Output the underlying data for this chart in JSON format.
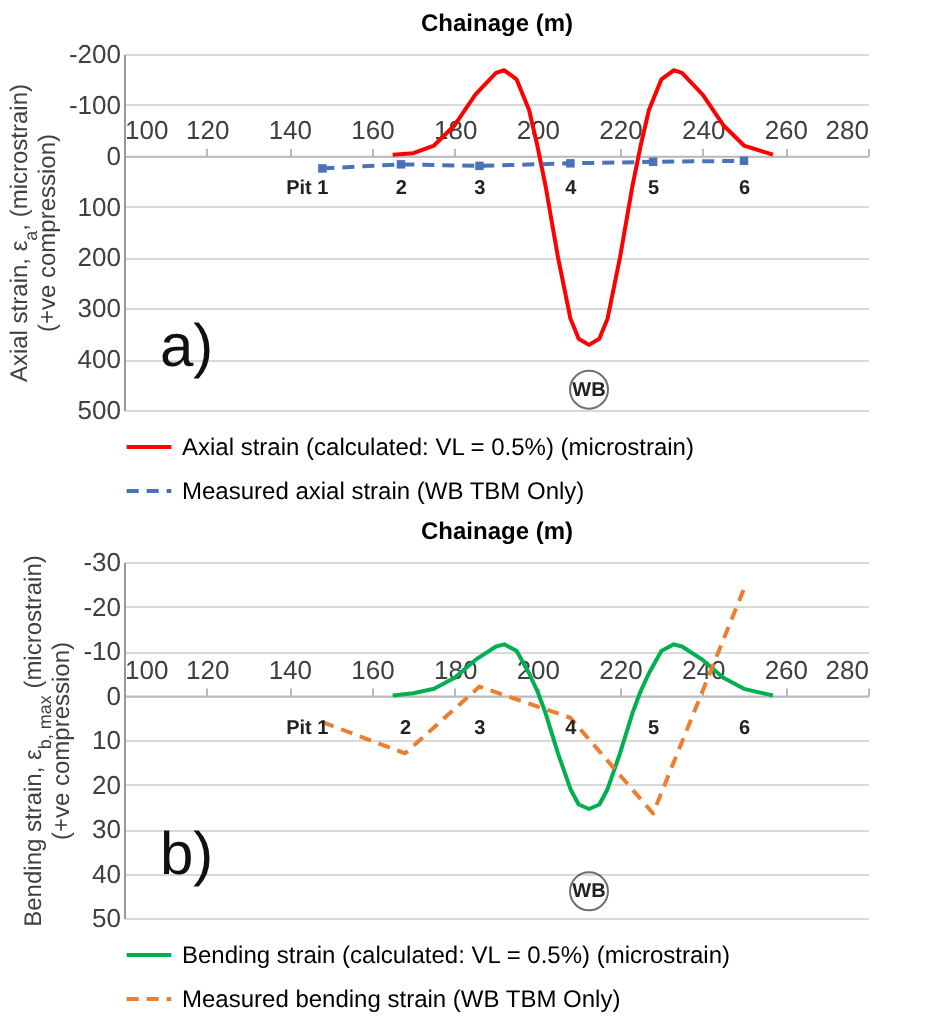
{
  "chart_data": [
    {
      "type": "line",
      "xlabel": "Chainage (m)",
      "ylabel": "Axial strain, ε$_{a}$, (microstrain)\n(+ve compression)",
      "xlim": [
        100,
        280
      ],
      "xticks": [
        100,
        120,
        140,
        160,
        180,
        200,
        220,
        240,
        260,
        280
      ],
      "ylim": [
        500,
        -200
      ],
      "yticks": [
        -200,
        -100,
        0,
        100,
        200,
        300,
        400,
        500
      ],
      "grid": "y",
      "legend": "bottom",
      "series": [
        {
          "name": "Axial strain (calculated: VL = 0.5%) (microstrain)",
          "color": "#ff0000",
          "line_style": "solid",
          "x": [
            165,
            170,
            175,
            180,
            185,
            190,
            192,
            195,
            198,
            200,
            202,
            205,
            208,
            210,
            212.5,
            215,
            217,
            220,
            223,
            225,
            227,
            230,
            233,
            235,
            240,
            245,
            250,
            257
          ],
          "values": [
            -2,
            -5,
            -20,
            -60,
            -120,
            -163,
            -168,
            -150,
            -90,
            -20,
            60,
            200,
            320,
            360,
            372,
            360,
            320,
            200,
            60,
            -20,
            -90,
            -150,
            -168,
            -163,
            -120,
            -60,
            -20,
            -2
          ]
        },
        {
          "name": "Measured axial strain (WB TBM Only)",
          "color": "#4a72b8",
          "line_style": "dashed",
          "marker": "square",
          "x": [
            148,
            167,
            186,
            208,
            228,
            250
          ],
          "values": [
            25,
            17,
            20,
            15,
            12,
            10
          ]
        }
      ],
      "annotations": [
        "a)",
        "Pit  1",
        "2",
        "3",
        "4",
        "5",
        "6",
        {
          "text": "WB",
          "x": 212.5,
          "y": 460
        }
      ]
    },
    {
      "type": "line",
      "xlabel": "Chainage (m)",
      "ylabel": "Bending strain, ε$_{b, max}$ (microstrain)\n(+ve compression)",
      "xlim": [
        100,
        280
      ],
      "xticks": [
        100,
        120,
        140,
        160,
        180,
        200,
        220,
        240,
        260,
        280
      ],
      "ylim": [
        50,
        -30
      ],
      "yticks": [
        -30,
        -20,
        -10,
        0,
        10,
        20,
        30,
        40,
        50
      ],
      "grid": "y",
      "legend": "bottom",
      "series": [
        {
          "name": "Bending strain (calculated: VL = 0.5%) (microstrain)",
          "color": "#00b050",
          "line_style": "solid",
          "x": [
            165,
            170,
            175,
            180,
            185,
            190,
            192,
            195,
            198,
            200,
            202,
            205,
            208,
            210,
            212.5,
            215,
            217,
            220,
            223,
            225,
            227,
            230,
            233,
            235,
            240,
            245,
            250,
            257
          ],
          "values": [
            0,
            -0.5,
            -1.5,
            -4,
            -8,
            -11,
            -11.5,
            -10,
            -5,
            -1,
            4,
            13,
            21,
            24.5,
            25.5,
            24.5,
            21,
            13,
            4,
            -1,
            -5,
            -10,
            -11.5,
            -11,
            -8,
            -4,
            -1.5,
            0
          ]
        },
        {
          "name": "Measured bending strain (WB TBM Only)",
          "color": "#ed7d31",
          "line_style": "dashed",
          "x": [
            148,
            168,
            186,
            208,
            228,
            250
          ],
          "values": [
            6,
            13,
            -2,
            5,
            26.5,
            -24
          ]
        }
      ],
      "annotations": [
        "b)",
        "Pit  1",
        "2",
        "3",
        "4",
        "5",
        "6",
        {
          "text": "WB",
          "x": 212.5,
          "y": 44
        }
      ]
    }
  ]
}
